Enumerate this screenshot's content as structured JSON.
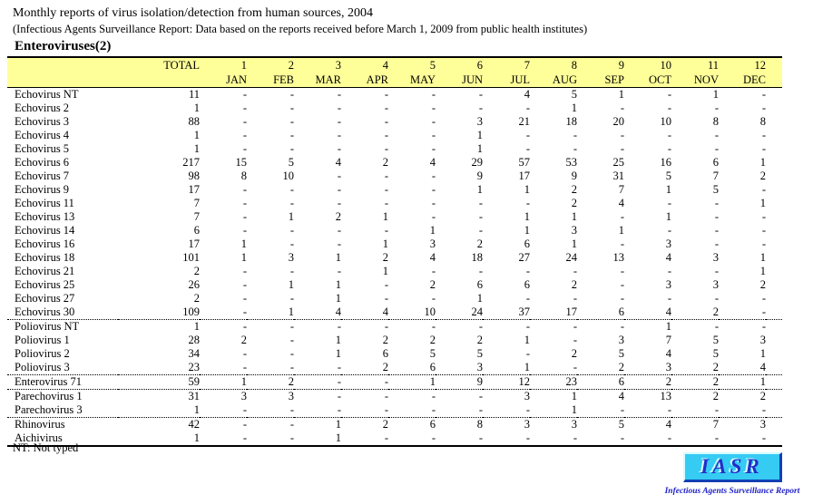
{
  "header": {
    "title": "Monthly reports of virus isolation/detection from human sources, 2004",
    "subtitle": "(Infectious Agents Surveillance Report: Data based on the reports received before March 1, 2009 from public health institutes)",
    "section_title": "Enteroviruses(2)"
  },
  "table": {
    "total_label": "TOTAL",
    "columns": [
      {
        "num": "1",
        "month": "JAN"
      },
      {
        "num": "2",
        "month": "FEB"
      },
      {
        "num": "3",
        "month": "MAR"
      },
      {
        "num": "4",
        "month": "APR"
      },
      {
        "num": "5",
        "month": "MAY"
      },
      {
        "num": "6",
        "month": "JUN"
      },
      {
        "num": "7",
        "month": "JUL"
      },
      {
        "num": "8",
        "month": "AUG"
      },
      {
        "num": "9",
        "month": "SEP"
      },
      {
        "num": "10",
        "month": "OCT"
      },
      {
        "num": "11",
        "month": "NOV"
      },
      {
        "num": "12",
        "month": "DEC"
      }
    ],
    "rows": [
      {
        "label": "Echovirus NT",
        "total": "11",
        "values": [
          "-",
          "-",
          "-",
          "-",
          "-",
          "-",
          "4",
          "5",
          "1",
          "-",
          "1",
          "-"
        ]
      },
      {
        "label": "Echovirus 2",
        "total": "1",
        "values": [
          "-",
          "-",
          "-",
          "-",
          "-",
          "-",
          "-",
          "1",
          "-",
          "-",
          "-",
          "-"
        ]
      },
      {
        "label": "Echovirus 3",
        "total": "88",
        "values": [
          "-",
          "-",
          "-",
          "-",
          "-",
          "3",
          "21",
          "18",
          "20",
          "10",
          "8",
          "8"
        ]
      },
      {
        "label": "Echovirus 4",
        "total": "1",
        "values": [
          "-",
          "-",
          "-",
          "-",
          "-",
          "1",
          "-",
          "-",
          "-",
          "-",
          "-",
          "-"
        ]
      },
      {
        "label": "Echovirus 5",
        "total": "1",
        "values": [
          "-",
          "-",
          "-",
          "-",
          "-",
          "1",
          "-",
          "-",
          "-",
          "-",
          "-",
          "-"
        ]
      },
      {
        "label": "Echovirus 6",
        "total": "217",
        "values": [
          "15",
          "5",
          "4",
          "2",
          "4",
          "29",
          "57",
          "53",
          "25",
          "16",
          "6",
          "1"
        ]
      },
      {
        "label": "Echovirus 7",
        "total": "98",
        "values": [
          "8",
          "10",
          "-",
          "-",
          "-",
          "9",
          "17",
          "9",
          "31",
          "5",
          "7",
          "2"
        ]
      },
      {
        "label": "Echovirus 9",
        "total": "17",
        "values": [
          "-",
          "-",
          "-",
          "-",
          "-",
          "1",
          "1",
          "2",
          "7",
          "1",
          "5",
          "-"
        ]
      },
      {
        "label": "Echovirus 11",
        "total": "7",
        "values": [
          "-",
          "-",
          "-",
          "-",
          "-",
          "-",
          "-",
          "2",
          "4",
          "-",
          "-",
          "1"
        ]
      },
      {
        "label": "Echovirus 13",
        "total": "7",
        "values": [
          "-",
          "1",
          "2",
          "1",
          "-",
          "-",
          "1",
          "1",
          "-",
          "1",
          "-",
          "-"
        ]
      },
      {
        "label": "Echovirus 14",
        "total": "6",
        "values": [
          "-",
          "-",
          "-",
          "-",
          "1",
          "-",
          "1",
          "3",
          "1",
          "-",
          "-",
          "-"
        ]
      },
      {
        "label": "Echovirus 16",
        "total": "17",
        "values": [
          "1",
          "-",
          "-",
          "1",
          "3",
          "2",
          "6",
          "1",
          "-",
          "3",
          "-",
          "-"
        ]
      },
      {
        "label": "Echovirus 18",
        "total": "101",
        "values": [
          "1",
          "3",
          "1",
          "2",
          "4",
          "18",
          "27",
          "24",
          "13",
          "4",
          "3",
          "1"
        ]
      },
      {
        "label": "Echovirus 21",
        "total": "2",
        "values": [
          "-",
          "-",
          "-",
          "1",
          "-",
          "-",
          "-",
          "-",
          "-",
          "-",
          "-",
          "1"
        ]
      },
      {
        "label": "Echovirus 25",
        "total": "26",
        "values": [
          "-",
          "1",
          "1",
          "-",
          "2",
          "6",
          "6",
          "2",
          "-",
          "3",
          "3",
          "2"
        ]
      },
      {
        "label": "Echovirus 27",
        "total": "2",
        "values": [
          "-",
          "-",
          "1",
          "-",
          "-",
          "1",
          "-",
          "-",
          "-",
          "-",
          "-",
          "-"
        ]
      },
      {
        "label": "Echovirus 30",
        "total": "109",
        "values": [
          "-",
          "1",
          "4",
          "4",
          "10",
          "24",
          "37",
          "17",
          "6",
          "4",
          "2",
          "-"
        ]
      },
      {
        "label": "Poliovirus NT",
        "total": "1",
        "values": [
          "-",
          "-",
          "-",
          "-",
          "-",
          "-",
          "-",
          "-",
          "-",
          "1",
          "-",
          "-"
        ]
      },
      {
        "label": "Poliovirus 1",
        "total": "28",
        "values": [
          "2",
          "-",
          "1",
          "2",
          "2",
          "2",
          "1",
          "-",
          "3",
          "7",
          "5",
          "3"
        ]
      },
      {
        "label": "Poliovirus 2",
        "total": "34",
        "values": [
          "-",
          "-",
          "1",
          "6",
          "5",
          "5",
          "-",
          "2",
          "5",
          "4",
          "5",
          "1"
        ]
      },
      {
        "label": "Poliovirus 3",
        "total": "23",
        "values": [
          "-",
          "-",
          "-",
          "2",
          "6",
          "3",
          "1",
          "-",
          "2",
          "3",
          "2",
          "4"
        ]
      },
      {
        "label": "Enterovirus 71",
        "total": "59",
        "values": [
          "1",
          "2",
          "-",
          "-",
          "1",
          "9",
          "12",
          "23",
          "6",
          "2",
          "2",
          "1"
        ]
      },
      {
        "label": "Parechovirus 1",
        "total": "31",
        "values": [
          "3",
          "3",
          "-",
          "-",
          "-",
          "-",
          "3",
          "1",
          "4",
          "13",
          "2",
          "2"
        ]
      },
      {
        "label": "Parechovirus 3",
        "total": "1",
        "values": [
          "-",
          "-",
          "-",
          "-",
          "-",
          "-",
          "-",
          "1",
          "-",
          "-",
          "-",
          "-"
        ]
      },
      {
        "label": "Rhinovirus",
        "total": "42",
        "values": [
          "-",
          "-",
          "1",
          "2",
          "6",
          "8",
          "3",
          "3",
          "5",
          "4",
          "7",
          "3"
        ]
      },
      {
        "label": "Aichivirus",
        "total": "1",
        "values": [
          "-",
          "-",
          "1",
          "-",
          "-",
          "-",
          "-",
          "-",
          "-",
          "-",
          "-",
          "-"
        ]
      }
    ],
    "group_breaks_after": [
      16,
      20,
      21,
      23
    ]
  },
  "footnote": "NT: Not typed",
  "logo": {
    "text": "IASR",
    "caption": "Infectious Agents Surveillance Report"
  },
  "colors": {
    "header_bg": "#FFFF99",
    "logo_bg": "#35CBF3",
    "logo_text": "#2030C8",
    "caption_text": "#2020C8"
  }
}
